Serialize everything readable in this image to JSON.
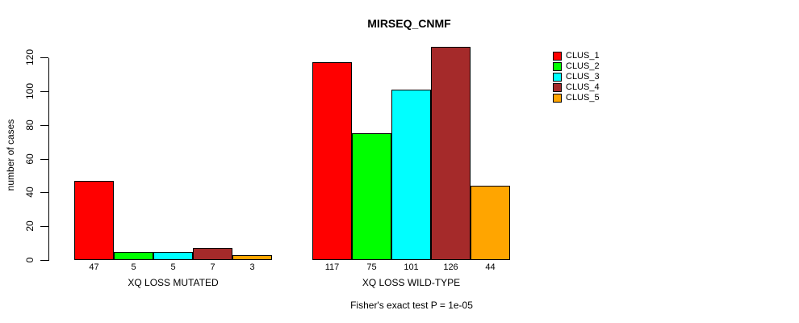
{
  "title": "MIRSEQ_CNMF",
  "chart_data": {
    "type": "bar",
    "title": "MIRSEQ_CNMF",
    "ylabel": "number of cases",
    "ylim": [
      0,
      120
    ],
    "yticks": [
      0,
      20,
      40,
      60,
      80,
      100,
      120
    ],
    "grid": false,
    "legend_position": "right",
    "categories": [
      "XQ LOSS MUTATED",
      "XQ LOSS WILD-TYPE"
    ],
    "series": [
      {
        "name": "CLUS_1",
        "color": "#FF0000",
        "values": [
          47,
          117
        ]
      },
      {
        "name": "CLUS_2",
        "color": "#00FF00",
        "values": [
          5,
          75
        ]
      },
      {
        "name": "CLUS_3",
        "color": "#00FFFF",
        "values": [
          5,
          101
        ]
      },
      {
        "name": "CLUS_4",
        "color": "#A52A2A",
        "values": [
          7,
          126
        ]
      },
      {
        "name": "CLUS_5",
        "color": "#FFA500",
        "values": [
          3,
          44
        ]
      }
    ],
    "groups": [
      {
        "label": "XQ LOSS MUTATED",
        "values": [
          47,
          5,
          5,
          7,
          3
        ]
      },
      {
        "label": "XQ LOSS WILD-TYPE",
        "values": [
          117,
          75,
          101,
          126,
          44
        ]
      }
    ],
    "bar_value_labels_shown": true,
    "annotation": "Fisher's exact test P = 1e-05"
  },
  "legend": {
    "entries": [
      {
        "label": "CLUS_1",
        "color": "#FF0000"
      },
      {
        "label": "CLUS_2",
        "color": "#00FF00"
      },
      {
        "label": "CLUS_3",
        "color": "#00FFFF"
      },
      {
        "label": "CLUS_4",
        "color": "#A52A2A"
      },
      {
        "label": "CLUS_5",
        "color": "#FFA500"
      }
    ]
  },
  "footer": {
    "text": "Fisher's exact test P = 1e-05"
  },
  "axis": {
    "y_label": "number of cases",
    "x_group_labels": [
      "XQ LOSS MUTATED",
      "XQ LOSS WILD-TYPE"
    ]
  },
  "colors": {
    "background": "#FFFFFF",
    "axis": "#000000",
    "text": "#000000"
  }
}
